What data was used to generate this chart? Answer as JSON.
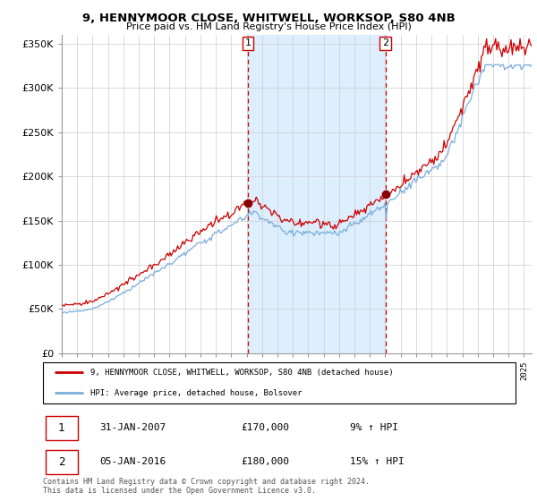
{
  "title": "9, HENNYMOOR CLOSE, WHITWELL, WORKSOP, S80 4NB",
  "subtitle": "Price paid vs. HM Land Registry's House Price Index (HPI)",
  "ylim": [
    0,
    360000
  ],
  "yticks": [
    0,
    50000,
    100000,
    150000,
    200000,
    250000,
    300000,
    350000
  ],
  "ytick_labels": [
    "£0",
    "£50K",
    "£100K",
    "£150K",
    "£200K",
    "£250K",
    "£300K",
    "£350K"
  ],
  "sale1_date_num": 2007.08,
  "sale1_price": 170000,
  "sale1_date_str": "31-JAN-2007",
  "sale1_pct": "9% ↑ HPI",
  "sale2_date_num": 2016.02,
  "sale2_price": 180000,
  "sale2_date_str": "05-JAN-2016",
  "sale2_pct": "15% ↑ HPI",
  "red_line_color": "#cc0000",
  "blue_line_color": "#7aaddb",
  "shade_color": "#ddeeff",
  "grid_color": "#cccccc",
  "background_color": "#ffffff",
  "legend_label_red": "9, HENNYMOOR CLOSE, WHITWELL, WORKSOP, S80 4NB (detached house)",
  "legend_label_blue": "HPI: Average price, detached house, Bolsover",
  "footer": "Contains HM Land Registry data © Crown copyright and database right 2024.\nThis data is licensed under the Open Government Licence v3.0.",
  "xmin": 1995.0,
  "xmax": 2025.5
}
